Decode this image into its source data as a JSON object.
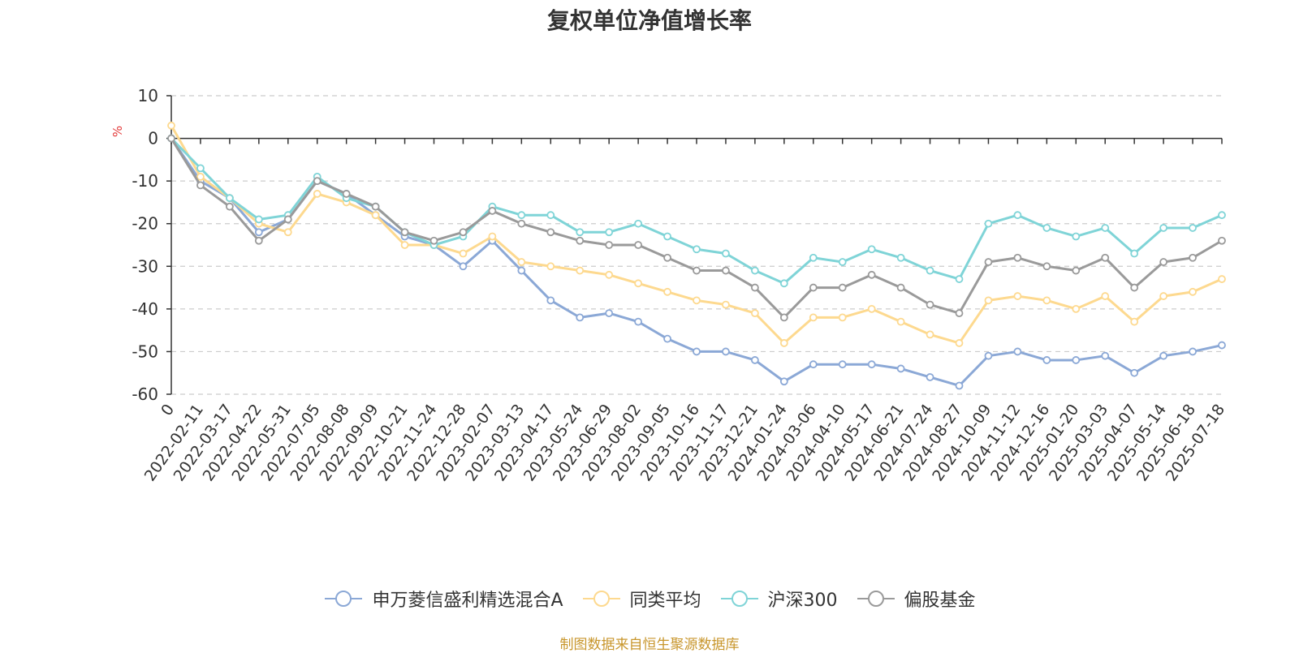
{
  "chart_data": {
    "type": "line",
    "title": "复权单位净值增长率",
    "ylabel": "%",
    "ylim": [
      -60,
      10
    ],
    "yticks": [
      10,
      0,
      -10,
      -20,
      -30,
      -40,
      -50,
      -60
    ],
    "grid": true,
    "legend_position": "bottom",
    "x_tick_labels": [
      "0",
      "2022-02-11",
      "2022-03-17",
      "2022-04-22",
      "2022-05-31",
      "2022-07-05",
      "2022-08-08",
      "2022-09-09",
      "2022-10-21",
      "2022-11-24",
      "2022-12-28",
      "2023-02-07",
      "2023-03-13",
      "2023-04-17",
      "2023-05-24",
      "2023-06-29",
      "2023-08-02",
      "2023-09-05",
      "2023-10-16",
      "2023-11-17",
      "2023-12-21",
      "2024-01-24",
      "2024-03-06",
      "2024-04-10",
      "2024-05-17",
      "2024-06-21",
      "2024-07-24",
      "2024-08-27",
      "2024-10-09",
      "2024-11-12",
      "2024-12-16",
      "2025-01-20",
      "2025-03-03",
      "2025-04-07",
      "2025-05-14",
      "2025-06-18",
      "2025-07-18"
    ],
    "series": [
      {
        "name": "申万菱信盛利精选混合A",
        "color": "#8ba8d6",
        "values": [
          0,
          -10,
          -14,
          -22,
          -19,
          -10,
          -13,
          -18,
          -23,
          -25,
          -30,
          -24,
          -31,
          -38,
          -42,
          -41,
          -43,
          -47,
          -50,
          -50,
          -52,
          -57,
          -53,
          -53,
          -53,
          -54,
          -56,
          -58,
          -51,
          -50,
          -52,
          -52,
          -51,
          -55,
          -51,
          -50,
          -48.5
        ]
      },
      {
        "name": "同类平均",
        "color": "#fdd98f",
        "values": [
          3,
          -9,
          -14,
          -20,
          -22,
          -13,
          -15,
          -18,
          -25,
          -25,
          -27,
          -23,
          -29,
          -30,
          -31,
          -32,
          -34,
          -36,
          -38,
          -39,
          -41,
          -48,
          -42,
          -42,
          -40,
          -43,
          -46,
          -48,
          -38,
          -37,
          -38,
          -40,
          -37,
          -43,
          -37,
          -36,
          -33
        ]
      },
      {
        "name": "沪深300",
        "color": "#7fd4d7",
        "values": [
          0,
          -7,
          -14,
          -19,
          -18,
          -9,
          -14,
          -16,
          -22,
          -25,
          -23,
          -16,
          -18,
          -18,
          -22,
          -22,
          -20,
          -23,
          -26,
          -27,
          -31,
          -34,
          -28,
          -29,
          -26,
          -28,
          -31,
          -33,
          -20,
          -18,
          -21,
          -23,
          -21,
          -27,
          -21,
          -21,
          -18
        ]
      },
      {
        "name": "偏股基金",
        "color": "#9a9a9a",
        "values": [
          0,
          -11,
          -16,
          -24,
          -19,
          -10,
          -13,
          -16,
          -22,
          -24,
          -22,
          -17,
          -20,
          -22,
          -24,
          -25,
          -25,
          -28,
          -31,
          -31,
          -35,
          -42,
          -35,
          -35,
          -32,
          -35,
          -39,
          -41,
          -29,
          -28,
          -30,
          -31,
          -28,
          -35,
          -29,
          -28,
          -24
        ]
      }
    ]
  },
  "source_note": "制图数据来自恒生聚源数据库"
}
